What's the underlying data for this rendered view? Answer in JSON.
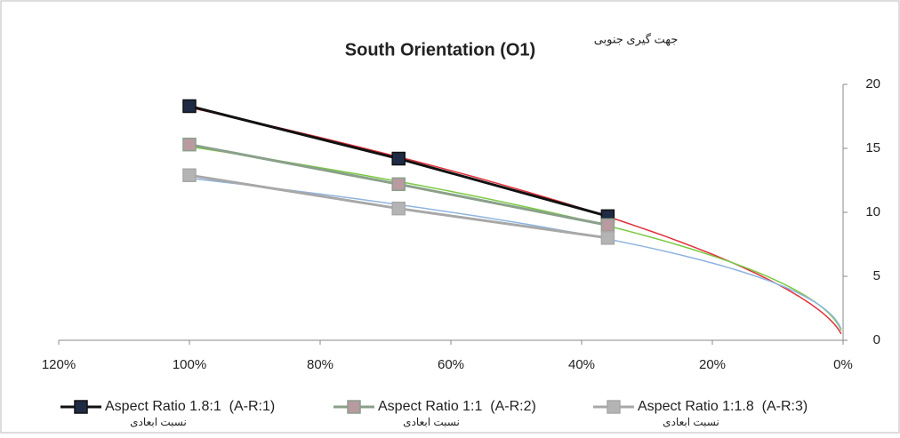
{
  "chart_data": {
    "type": "line",
    "title": "South Orientation (O1)",
    "annotation": "جهت گیری جنوبی",
    "x": [
      100,
      68,
      36
    ],
    "xlim": [
      120,
      0
    ],
    "xticks": [
      {
        "value": 120,
        "label": "120%"
      },
      {
        "value": 100,
        "label": "100%"
      },
      {
        "value": 80,
        "label": "80%"
      },
      {
        "value": 60,
        "label": "60%"
      },
      {
        "value": 40,
        "label": "40%"
      },
      {
        "value": 20,
        "label": "20%"
      },
      {
        "value": 0,
        "label": "0%"
      }
    ],
    "ylim": [
      0,
      20
    ],
    "yticks": [
      0,
      5,
      10,
      15,
      20
    ],
    "y_axis_side": "right",
    "legend": "bottom",
    "series": [
      {
        "name": "Aspect Ratio 1.8:1  (A-R:1)",
        "subname": "نسبت ابعادی",
        "color": "#111111",
        "marker_color": "#1f2a44",
        "trendline_color": "#e0303a",
        "values": [
          18.3,
          14.2,
          9.7
        ]
      },
      {
        "name": "Aspect Ratio 1:1  (A-R:2)",
        "subname": "نسبت ابعادی",
        "color": "#8aa08a",
        "marker_color": "#b89aa0",
        "trendline_color": "#7ac943",
        "values": [
          15.3,
          12.2,
          9.0
        ]
      },
      {
        "name": "Aspect Ratio 1:1.8  (A-R:3)",
        "subname": "نسبت ابعادی",
        "color": "#a8a8a8",
        "marker_color": "#b4b4b4",
        "trendline_color": "#8fb4e0",
        "values": [
          12.9,
          10.3,
          8.0
        ]
      }
    ]
  }
}
